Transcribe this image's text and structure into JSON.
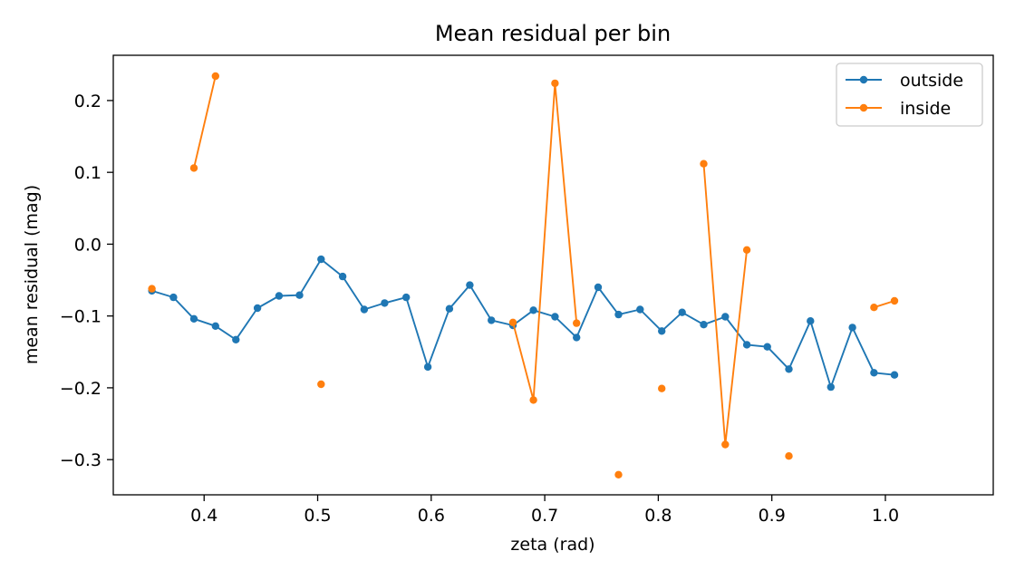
{
  "chart_data": {
    "type": "line",
    "title": "Mean residual per bin",
    "xlabel": "zeta (rad)",
    "ylabel": "mean residual (mag)",
    "xlim": [
      0.32,
      1.095
    ],
    "ylim": [
      -0.349,
      0.263
    ],
    "xticks": [
      0.4,
      0.5,
      0.6,
      0.7,
      0.8,
      0.9,
      1.0
    ],
    "xtick_labels": [
      "0.4",
      "0.5",
      "0.6",
      "0.7",
      "0.8",
      "0.9",
      "1.0"
    ],
    "yticks": [
      0.2,
      0.1,
      0.0,
      -0.1,
      -0.2,
      -0.3
    ],
    "ytick_labels": [
      "0.2",
      "0.1",
      "0.0",
      "−0.1",
      "−0.2",
      "−0.3"
    ],
    "grid": false,
    "legend_position": "top-right",
    "series": [
      {
        "name": "outside",
        "color": "#1f77b4",
        "marker": "circle",
        "x": [
          0.354,
          0.373,
          0.391,
          0.41,
          0.428,
          0.447,
          0.466,
          0.484,
          0.503,
          0.522,
          0.541,
          0.559,
          0.578,
          0.597,
          0.616,
          0.634,
          0.653,
          0.672,
          0.69,
          0.709,
          0.728,
          0.747,
          0.765,
          0.784,
          0.803,
          0.821,
          0.84,
          0.859,
          0.878,
          0.896,
          0.915,
          0.934,
          0.952,
          0.971,
          0.99,
          1.008
        ],
        "y": [
          -0.065,
          -0.074,
          -0.104,
          -0.114,
          -0.133,
          -0.089,
          -0.072,
          -0.071,
          -0.021,
          -0.045,
          -0.091,
          -0.082,
          -0.074,
          -0.171,
          -0.09,
          -0.057,
          -0.106,
          -0.113,
          -0.092,
          -0.101,
          -0.13,
          -0.06,
          -0.098,
          -0.091,
          -0.121,
          -0.095,
          -0.112,
          -0.101,
          -0.14,
          -0.143,
          -0.174,
          -0.107,
          -0.199,
          -0.116,
          -0.179,
          -0.182
        ]
      },
      {
        "name": "inside",
        "color": "#ff7f0e",
        "marker": "circle",
        "x": [
          0.354,
          0.373,
          0.391,
          0.41,
          0.428,
          0.447,
          0.466,
          0.484,
          0.503,
          0.522,
          0.541,
          0.559,
          0.578,
          0.597,
          0.616,
          0.634,
          0.653,
          0.672,
          0.69,
          0.709,
          0.728,
          0.747,
          0.765,
          0.784,
          0.803,
          0.821,
          0.84,
          0.859,
          0.878,
          0.896,
          0.915,
          0.934,
          0.952,
          0.971,
          0.99,
          1.008
        ],
        "y": [
          -0.062,
          null,
          0.106,
          0.234,
          null,
          null,
          null,
          null,
          -0.195,
          null,
          null,
          null,
          null,
          null,
          null,
          null,
          null,
          -0.109,
          -0.217,
          0.224,
          -0.11,
          null,
          -0.321,
          null,
          -0.201,
          null,
          0.112,
          -0.279,
          -0.008,
          null,
          -0.295,
          null,
          null,
          null,
          -0.088,
          -0.079
        ]
      }
    ]
  }
}
